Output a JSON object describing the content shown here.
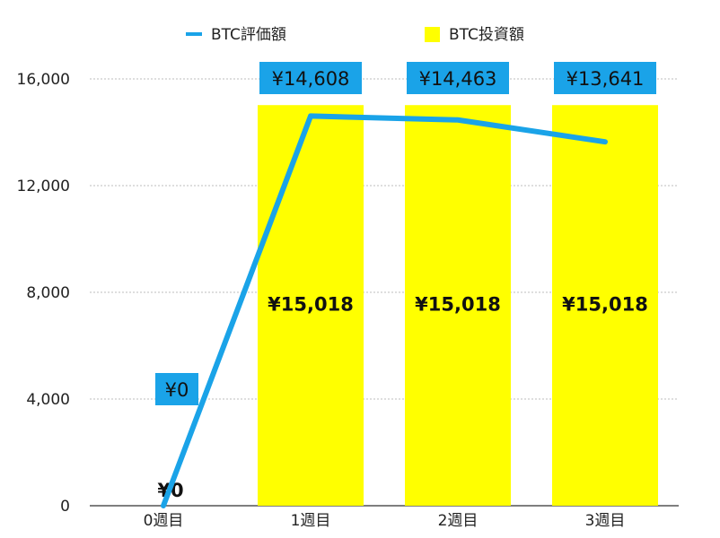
{
  "chart_data": {
    "type": "bar",
    "categories": [
      "0週目",
      "1週目",
      "2週目",
      "3週目"
    ],
    "series": [
      {
        "name": "BTC投資額",
        "type": "bar",
        "values": [
          0,
          15018,
          15018,
          15018
        ],
        "labels": [
          "¥0",
          "¥15,018",
          "¥15,018",
          "¥15,018"
        ],
        "color": "#ffff00"
      },
      {
        "name": "BTC評価額",
        "type": "line",
        "values": [
          0,
          14608,
          14463,
          13641
        ],
        "labels": [
          "¥0",
          "¥14,608",
          "¥14,463",
          "¥13,641"
        ],
        "color": "#1aa3e8"
      }
    ],
    "ylim": [
      0,
      16000
    ],
    "yticks": [
      0,
      4000,
      8000,
      12000,
      16000
    ],
    "ytick_labels": [
      "0",
      "4,000",
      "8,000",
      "12,000",
      "16,000"
    ],
    "grid": true,
    "legend": "top",
    "title": "",
    "xlabel": "",
    "ylabel": ""
  }
}
